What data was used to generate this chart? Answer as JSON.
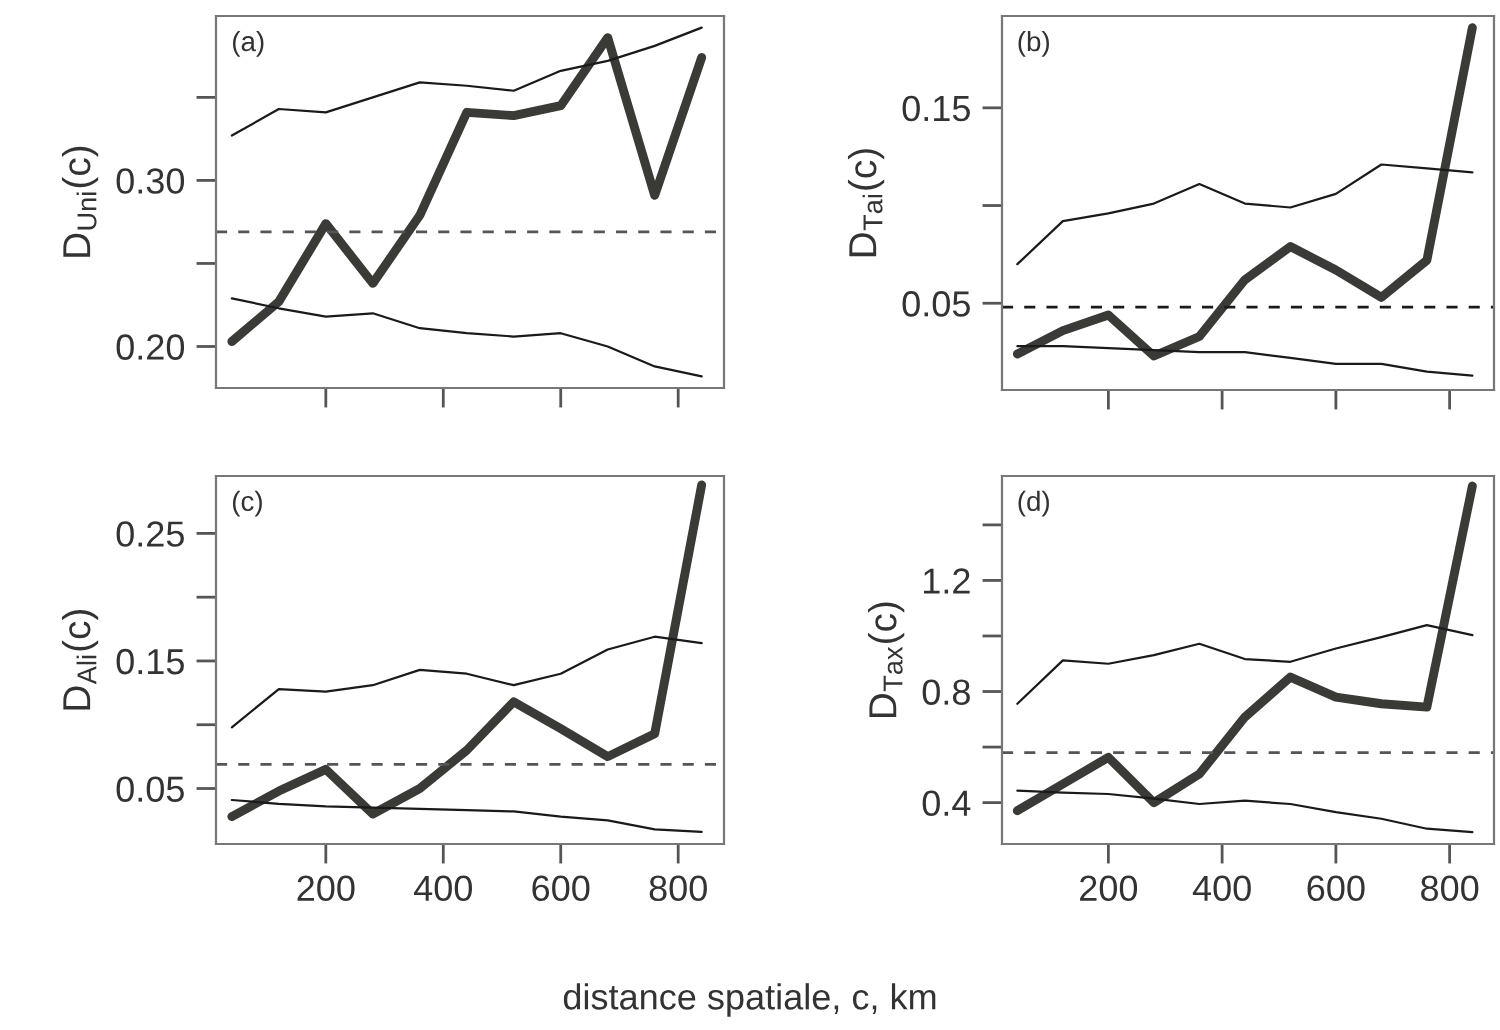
{
  "chart_data": [
    {
      "type": "line",
      "ylabel": "D$_{Uni}$(c)",
      "annotations": [
        "(a)"
      ],
      "x": [
        40,
        120,
        200,
        280,
        360,
        440,
        520,
        600,
        680,
        760,
        840
      ],
      "xlim": [
        13,
        878
      ],
      "xticks": [
        200,
        400,
        600,
        800
      ],
      "ylim": [
        0.175,
        0.399
      ],
      "yticks": [
        {
          "value": 0.2,
          "label": "0.20"
        },
        {
          "value": 0.25,
          "label": null
        },
        {
          "value": 0.3,
          "label": "0.30"
        },
        {
          "value": 0.35,
          "label": null
        }
      ],
      "tick_labels": "y",
      "grid": false,
      "legend": false,
      "series": [
        {
          "color": "#3a3a36",
          "values": [
            0.203,
            0.227,
            0.274,
            0.238,
            0.279,
            0.341,
            0.339,
            0.345,
            0.386,
            0.291,
            0.374
          ]
        },
        {
          "color": "#1a1a1a",
          "values": [
            0.327,
            0.343,
            0.341,
            0.35,
            0.359,
            0.357,
            0.354,
            0.366,
            0.372,
            0.381,
            0.392
          ]
        },
        {
          "color": "#1a1a1a",
          "values": [
            0.229,
            0.223,
            0.218,
            0.22,
            0.211,
            0.208,
            0.206,
            0.208,
            0.2,
            0.188,
            0.182
          ]
        }
      ],
      "ref_lines": [
        {
          "axis": "y",
          "value": 0.269,
          "color": "#555555",
          "line_style": "dashed"
        }
      ]
    },
    {
      "type": "line",
      "ylabel": "D$_{Tai}$(c)",
      "annotations": [
        "(b)"
      ],
      "x": [
        40,
        120,
        200,
        280,
        360,
        440,
        520,
        600,
        680,
        760,
        840
      ],
      "xlim": [
        13,
        878
      ],
      "xticks": [
        200,
        400,
        600,
        800
      ],
      "ylim": [
        0.0056,
        0.197
      ],
      "yticks": [
        0.05,
        {
          "value": 0.1,
          "label": null
        },
        0.15
      ],
      "tick_labels": "y",
      "grid": false,
      "legend": false,
      "series": [
        {
          "color": "#3a3a36",
          "values": [
            0.024,
            0.036,
            0.044,
            0.023,
            0.033,
            0.062,
            0.079,
            0.067,
            0.053,
            0.072,
            0.191
          ]
        },
        {
          "color": "#1a1a1a",
          "values": [
            0.07,
            0.092,
            0.096,
            0.101,
            0.111,
            0.101,
            0.099,
            0.106,
            0.121,
            0.119,
            0.117
          ]
        },
        {
          "color": "#1a1a1a",
          "values": [
            0.028,
            0.028,
            0.027,
            0.026,
            0.025,
            0.025,
            0.022,
            0.019,
            0.019,
            0.015,
            0.013
          ]
        }
      ],
      "ref_lines": [
        {
          "axis": "y",
          "value": 0.048,
          "color": "#1a1a1a",
          "line_style": "dashed"
        }
      ]
    },
    {
      "type": "line",
      "ylabel": "D$_{Ali}$(c)",
      "annotations": [
        "(c)"
      ],
      "x": [
        40,
        120,
        200,
        280,
        360,
        440,
        520,
        600,
        680,
        760,
        840
      ],
      "xlim": [
        13,
        878
      ],
      "xticks": [
        200,
        400,
        600,
        800
      ],
      "ylim": [
        0.0065,
        0.295
      ],
      "yticks": [
        0.05,
        {
          "value": 0.1,
          "label": null
        },
        0.15,
        {
          "value": 0.2,
          "label": null
        },
        0.25
      ],
      "grid": false,
      "legend": false,
      "series": [
        {
          "color": "#3a3a36",
          "values": [
            0.028,
            0.048,
            0.065,
            0.03,
            0.05,
            0.08,
            0.118,
            0.097,
            0.075,
            0.093,
            0.288
          ]
        },
        {
          "color": "#1a1a1a",
          "values": [
            0.098,
            0.128,
            0.126,
            0.131,
            0.143,
            0.14,
            0.131,
            0.14,
            0.159,
            0.169,
            0.164
          ]
        },
        {
          "color": "#1a1a1a",
          "values": [
            0.041,
            0.038,
            0.036,
            0.035,
            0.034,
            0.033,
            0.032,
            0.028,
            0.025,
            0.018,
            0.016
          ]
        }
      ],
      "ref_lines": [
        {
          "axis": "y",
          "value": 0.069,
          "color": "#555555",
          "line_style": "dashed"
        }
      ]
    },
    {
      "type": "line",
      "ylabel": "D$_{Tax}$(c)",
      "xlabel": "distance spatiale, c, km",
      "annotations": [
        "(d)"
      ],
      "x": [
        40,
        120,
        200,
        280,
        360,
        440,
        520,
        600,
        680,
        760,
        840
      ],
      "xlim": [
        13,
        878
      ],
      "xticks": [
        200,
        400,
        600,
        800
      ],
      "ylim": [
        0.251,
        1.576
      ],
      "yticks": [
        0.4,
        {
          "value": 0.6,
          "label": null
        },
        0.8,
        {
          "value": 1.0,
          "label": null
        },
        1.2,
        {
          "value": 1.4,
          "label": null
        }
      ],
      "grid": false,
      "legend": false,
      "series": [
        {
          "color": "#3a3a36",
          "values": [
            0.371,
            0.467,
            0.563,
            0.4,
            0.503,
            0.708,
            0.852,
            0.78,
            0.756,
            0.744,
            1.54
          ]
        },
        {
          "color": "#1a1a1a",
          "values": [
            0.756,
            0.912,
            0.9,
            0.931,
            0.972,
            0.917,
            0.907,
            0.955,
            0.996,
            1.039,
            1.003
          ]
        },
        {
          "color": "#1a1a1a",
          "values": [
            0.443,
            0.436,
            0.431,
            0.414,
            0.395,
            0.407,
            0.395,
            0.366,
            0.342,
            0.306,
            0.294
          ]
        }
      ],
      "ref_lines": [
        {
          "axis": "y",
          "value": 0.58,
          "color": "#555555",
          "line_style": "dashed"
        }
      ]
    }
  ]
}
